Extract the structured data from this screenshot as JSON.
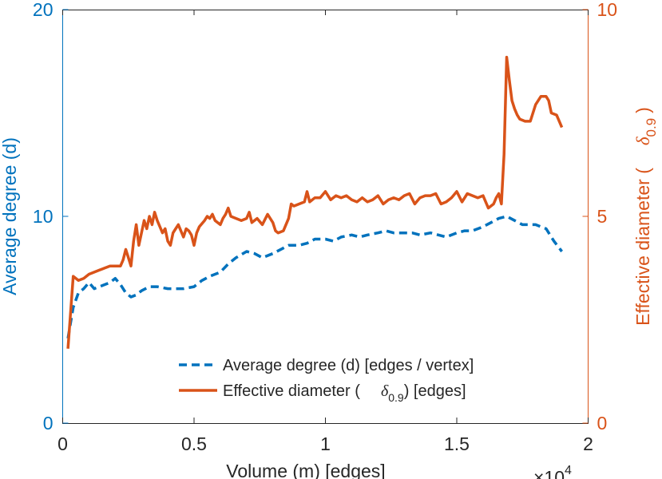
{
  "chart_data": {
    "type": "line",
    "xlabel": "Volume (m) [edges]",
    "x_exponent_base": "×10",
    "x_exponent_power": "4",
    "xlim": [
      0,
      2
    ],
    "xticks": [
      "0",
      "0.5",
      "1",
      "1.5",
      "2"
    ],
    "ylabel_left": "Average degree (d)",
    "ylim_left": [
      0,
      20
    ],
    "yticks_left": [
      "0",
      "10",
      "20"
    ],
    "ylabel_right_main": "Effective diameter (",
    "ylabel_right_symbol": "δ",
    "ylabel_right_subscript": "0.9",
    "ylabel_right_close": ")",
    "ylim_right": [
      0,
      10
    ],
    "yticks_right": [
      "0",
      "5",
      "10"
    ],
    "legend_position": "bottom-center",
    "legend": {
      "entry1": "Average degree (d) [edges / vertex]",
      "entry2_main": "Effective diameter (",
      "entry2_symbol": "δ",
      "entry2_subscript": "0.9",
      "entry2_close": ") [edges]"
    },
    "colors": {
      "left_axis": "#0072BD",
      "right_axis": "#D95319",
      "frame": "#262626"
    },
    "series": [
      {
        "name": "Average degree (d) [edges / vertex]",
        "axis": "left",
        "style": "dashed",
        "color": "#0072BD",
        "x": [
          0.02,
          0.04,
          0.06,
          0.08,
          0.1,
          0.12,
          0.14,
          0.16,
          0.18,
          0.2,
          0.22,
          0.24,
          0.26,
          0.28,
          0.3,
          0.33,
          0.36,
          0.4,
          0.43,
          0.46,
          0.5,
          0.53,
          0.56,
          0.6,
          0.63,
          0.66,
          0.7,
          0.73,
          0.76,
          0.8,
          0.83,
          0.86,
          0.9,
          0.93,
          0.96,
          1.0,
          1.03,
          1.06,
          1.1,
          1.13,
          1.16,
          1.2,
          1.23,
          1.26,
          1.3,
          1.33,
          1.36,
          1.4,
          1.43,
          1.46,
          1.5,
          1.53,
          1.56,
          1.6,
          1.63,
          1.66,
          1.69,
          1.72,
          1.75,
          1.8,
          1.84,
          1.87,
          1.9
        ],
        "y": [
          4.1,
          5.6,
          6.3,
          6.5,
          6.8,
          6.5,
          6.6,
          6.7,
          6.8,
          7.0,
          6.7,
          6.3,
          6.1,
          6.2,
          6.4,
          6.6,
          6.6,
          6.5,
          6.5,
          6.5,
          6.6,
          6.9,
          7.1,
          7.3,
          7.7,
          8.0,
          8.3,
          8.2,
          8.0,
          8.2,
          8.4,
          8.6,
          8.6,
          8.7,
          8.9,
          8.9,
          8.8,
          9.0,
          9.1,
          9.0,
          9.1,
          9.2,
          9.3,
          9.2,
          9.2,
          9.2,
          9.1,
          9.2,
          9.1,
          9.0,
          9.2,
          9.3,
          9.3,
          9.5,
          9.7,
          9.9,
          10.0,
          9.8,
          9.6,
          9.6,
          9.4,
          8.8,
          8.3
        ]
      },
      {
        "name": "Effective diameter (δ0.9) [edges]",
        "axis": "right",
        "style": "solid",
        "color": "#D95319",
        "x": [
          0.02,
          0.04,
          0.06,
          0.08,
          0.1,
          0.12,
          0.14,
          0.16,
          0.18,
          0.2,
          0.22,
          0.23,
          0.24,
          0.25,
          0.26,
          0.27,
          0.28,
          0.29,
          0.3,
          0.31,
          0.32,
          0.33,
          0.34,
          0.35,
          0.36,
          0.38,
          0.39,
          0.4,
          0.41,
          0.42,
          0.43,
          0.44,
          0.46,
          0.47,
          0.48,
          0.49,
          0.5,
          0.51,
          0.52,
          0.54,
          0.55,
          0.56,
          0.57,
          0.58,
          0.6,
          0.61,
          0.62,
          0.63,
          0.64,
          0.66,
          0.68,
          0.7,
          0.71,
          0.72,
          0.74,
          0.76,
          0.78,
          0.8,
          0.81,
          0.82,
          0.84,
          0.86,
          0.87,
          0.88,
          0.9,
          0.92,
          0.93,
          0.94,
          0.95,
          0.96,
          0.98,
          1.0,
          1.02,
          1.04,
          1.06,
          1.08,
          1.1,
          1.12,
          1.14,
          1.16,
          1.18,
          1.2,
          1.22,
          1.24,
          1.26,
          1.28,
          1.3,
          1.32,
          1.34,
          1.36,
          1.38,
          1.4,
          1.42,
          1.44,
          1.46,
          1.48,
          1.5,
          1.52,
          1.54,
          1.56,
          1.58,
          1.6,
          1.62,
          1.64,
          1.65,
          1.66,
          1.67,
          1.68,
          1.69,
          1.7,
          1.71,
          1.72,
          1.73,
          1.74,
          1.76,
          1.78,
          1.8,
          1.82,
          1.84,
          1.85,
          1.86,
          1.88,
          1.9
        ],
        "y": [
          1.8,
          3.55,
          3.45,
          3.5,
          3.6,
          3.65,
          3.7,
          3.75,
          3.8,
          3.8,
          3.8,
          3.95,
          4.2,
          4.0,
          3.8,
          4.4,
          4.8,
          4.3,
          4.6,
          4.9,
          4.7,
          5.0,
          4.8,
          5.1,
          4.9,
          4.6,
          4.7,
          4.4,
          4.3,
          4.6,
          4.7,
          4.8,
          4.5,
          4.7,
          4.65,
          4.55,
          4.3,
          4.6,
          4.75,
          4.9,
          5.0,
          4.95,
          5.05,
          4.9,
          4.8,
          4.95,
          5.05,
          5.2,
          5.0,
          4.95,
          4.9,
          4.95,
          5.1,
          4.85,
          4.95,
          4.8,
          5.05,
          4.85,
          4.65,
          4.6,
          4.65,
          4.95,
          5.3,
          5.25,
          5.3,
          5.35,
          5.6,
          5.35,
          5.4,
          5.45,
          5.45,
          5.6,
          5.4,
          5.5,
          5.45,
          5.5,
          5.4,
          5.35,
          5.45,
          5.35,
          5.4,
          5.5,
          5.3,
          5.4,
          5.45,
          5.4,
          5.5,
          5.55,
          5.3,
          5.45,
          5.5,
          5.5,
          5.55,
          5.3,
          5.35,
          5.45,
          5.6,
          5.35,
          5.55,
          5.5,
          5.45,
          5.5,
          5.2,
          5.3,
          5.45,
          5.55,
          5.3,
          6.5,
          8.85,
          8.3,
          7.8,
          7.6,
          7.45,
          7.35,
          7.3,
          7.3,
          7.7,
          7.9,
          7.9,
          7.8,
          7.5,
          7.45,
          7.15
        ]
      }
    ]
  }
}
